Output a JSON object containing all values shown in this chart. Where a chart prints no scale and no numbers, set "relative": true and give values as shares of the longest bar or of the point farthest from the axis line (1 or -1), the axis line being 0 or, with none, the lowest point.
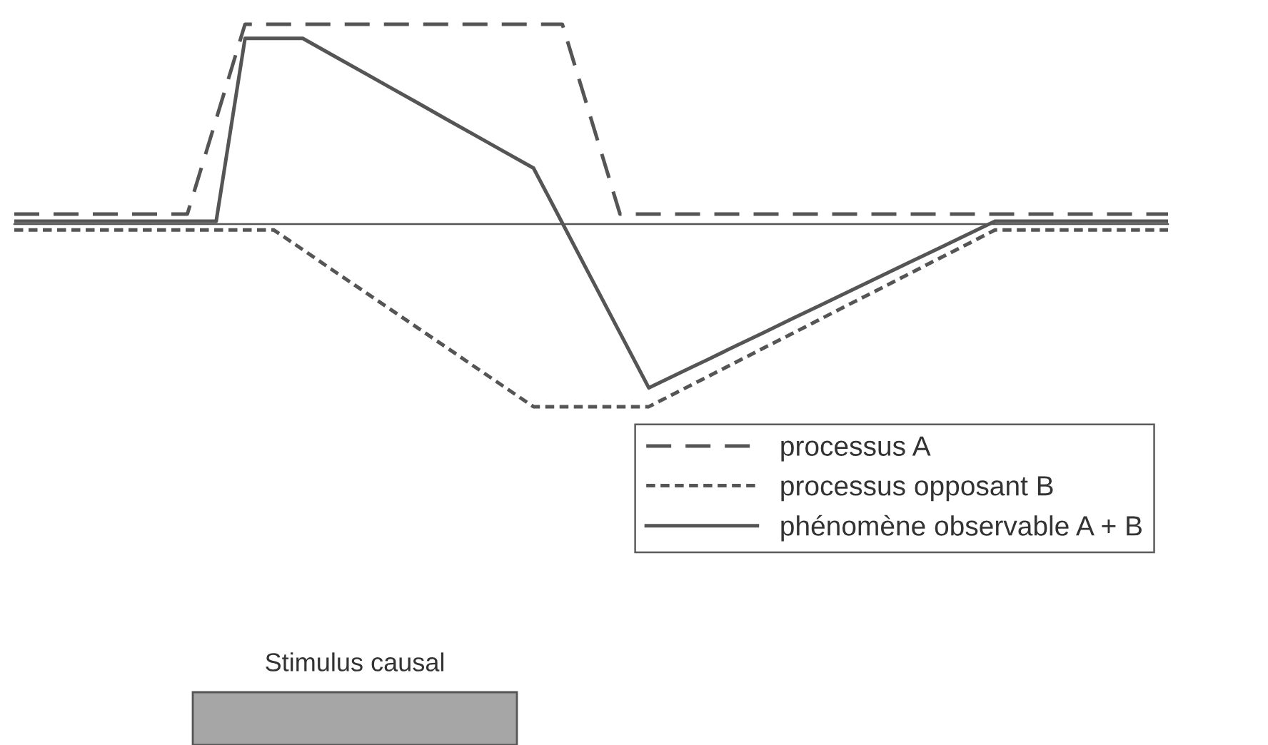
{
  "chart_data": {
    "type": "line",
    "relative": true,
    "legend": "bottom right",
    "categories": [
      null,
      null,
      null,
      null,
      null,
      null,
      null,
      null,
      null,
      null,
      null,
      null,
      null,
      null,
      null,
      null,
      null,
      null,
      null,
      null,
      null,
      null,
      null,
      null,
      null,
      null,
      null,
      null,
      null,
      null,
      null,
      null,
      null,
      null,
      null,
      null,
      null,
      null,
      null,
      null,
      null
    ],
    "series": [
      {
        "name": "processus A",
        "color": "#555555",
        "line_style": "dashed",
        "values": [
          0.05,
          0.05,
          0.05,
          0.05,
          0.05,
          0.05,
          0.05,
          0.525,
          1,
          1,
          1,
          1,
          1,
          1,
          1,
          1,
          1,
          1,
          1,
          1,
          0.525,
          0.05,
          0.05,
          0.05,
          0.05,
          0.05,
          0.05,
          0.05,
          0.05,
          0.05,
          0.05,
          0.05,
          0.05,
          0.05,
          0.05,
          0.05,
          0.05,
          0.05,
          0.05,
          0.05,
          0.05
        ]
      },
      {
        "name": "processus opposant B",
        "color": "#555555",
        "line_style": "dotted",
        "values": [
          -0.03,
          -0.03,
          -0.03,
          -0.03,
          -0.03,
          -0.03,
          -0.03,
          -0.03,
          -0.03,
          -0.03,
          -0.128,
          -0.227,
          -0.325,
          -0.423,
          -0.521,
          -0.619,
          -0.718,
          -0.816,
          -0.914,
          -0.914,
          -0.914,
          -0.914,
          -0.914,
          -0.84,
          -0.767,
          -0.693,
          -0.619,
          -0.546,
          -0.472,
          -0.398,
          -0.325,
          -0.251,
          -0.177,
          -0.104,
          -0.03,
          -0.03,
          -0.03,
          -0.03,
          -0.03,
          -0.03,
          -0.03
        ]
      },
      {
        "name": "phénomène observable A + B",
        "color": "#555555",
        "line_style": "solid",
        "values": [
          0.014,
          0.014,
          0.014,
          0.014,
          0.014,
          0.014,
          0.014,
          0.014,
          0.929,
          0.929,
          0.929,
          0.848,
          0.767,
          0.686,
          0.605,
          0.523,
          0.442,
          0.361,
          0.28,
          0.005,
          -0.27,
          -0.545,
          -0.82,
          -0.75,
          -0.681,
          -0.611,
          -0.542,
          -0.472,
          -0.403,
          -0.333,
          -0.264,
          -0.194,
          -0.125,
          -0.056,
          0.014,
          0.014,
          0.014,
          0.014,
          0.014,
          0.014,
          0.014
        ]
      }
    ],
    "annotations": [
      "Stimulus causal"
    ]
  }
}
